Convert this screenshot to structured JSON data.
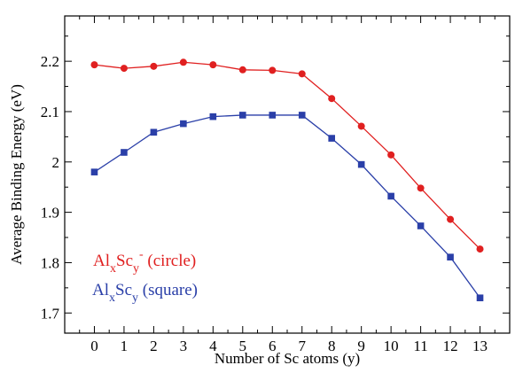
{
  "chart_data": {
    "type": "line",
    "title": "",
    "xlabel": "Number of Sc atoms (y)",
    "ylabel": "Average Binding Energy (eV)",
    "x": [
      0,
      1,
      2,
      3,
      4,
      5,
      6,
      7,
      8,
      9,
      10,
      11,
      12,
      13
    ],
    "xlim": [
      -1,
      14
    ],
    "ylim": [
      1.66,
      2.29
    ],
    "xticks": [
      0,
      1,
      2,
      3,
      4,
      5,
      6,
      7,
      8,
      9,
      10,
      11,
      12,
      13
    ],
    "yticks": [
      1.7,
      1.8,
      1.9,
      2.0,
      2.1,
      2.2
    ],
    "ytick_labels": [
      "1.7",
      "1.8",
      "1.9",
      "2",
      "2.1",
      "2.2"
    ],
    "grid": false,
    "legend_placement": "lower-left",
    "series": [
      {
        "marker": "circle",
        "color": "#e02020",
        "values": [
          2.193,
          2.186,
          2.19,
          2.198,
          2.193,
          2.183,
          2.182,
          2.175,
          2.126,
          2.071,
          2.014,
          1.948,
          1.886,
          1.827
        ]
      },
      {
        "marker": "square",
        "color": "#2a3fa8",
        "values": [
          1.98,
          2.019,
          2.059,
          2.076,
          2.09,
          2.093,
          2.093,
          2.093,
          2.047,
          1.995,
          1.932,
          1.873,
          1.811,
          1.73
        ]
      }
    ],
    "legend": [
      {
        "base": "Al",
        "sub1": "x",
        "mid": "Sc",
        "sub2": "y",
        "sup": "-",
        "tail": " (circle)",
        "color": "#e02020"
      },
      {
        "base": "Al",
        "sub1": "x",
        "mid": "Sc",
        "sub2": "y",
        "sup": "",
        "tail": " (square)",
        "color": "#2a3fa8"
      }
    ]
  }
}
